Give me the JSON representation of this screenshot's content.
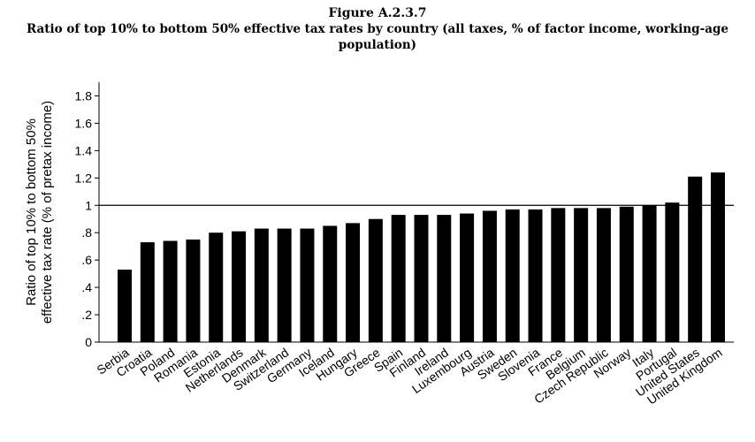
{
  "figure": {
    "label": "Figure A.2.3.7",
    "title_line1": "Ratio of top 10% to bottom 50% effective tax rates by country (all taxes, % of factor income, working-age",
    "title_line2": "population)"
  },
  "chart_data": {
    "type": "bar",
    "ylabel_line1": "Ratio of top 10% to bottom 50%",
    "ylabel_line2": "effective tax rate (% of pretax income)",
    "xlabel": "",
    "ylim": [
      0,
      1.9
    ],
    "yticks": [
      0,
      0.2,
      0.4,
      0.6,
      0.8,
      1,
      1.2,
      1.4,
      1.6,
      1.8
    ],
    "ytick_labels": [
      "0",
      ".2",
      ".4",
      ".6",
      ".8",
      "1",
      "1.2",
      "1.4",
      "1.6",
      "1.8"
    ],
    "reference_line": 1,
    "bar_color": "#000000",
    "categories": [
      "Serbia",
      "Croatia",
      "Poland",
      "Romania",
      "Estonia",
      "Netherlands",
      "Denmark",
      "Switzerland",
      "Germany",
      "Iceland",
      "Hungary",
      "Greece",
      "Spain",
      "Finland",
      "Ireland",
      "Luxembourg",
      "Austria",
      "Sweden",
      "Slovenia",
      "France",
      "Belgium",
      "Czech Republic",
      "Norway",
      "Italy",
      "Portugal",
      "United States",
      "United Kingdom"
    ],
    "values": [
      0.53,
      0.73,
      0.74,
      0.75,
      0.8,
      0.81,
      0.83,
      0.83,
      0.83,
      0.85,
      0.87,
      0.9,
      0.93,
      0.93,
      0.93,
      0.94,
      0.96,
      0.97,
      0.97,
      0.98,
      0.98,
      0.98,
      0.99,
      1.0,
      1.02,
      1.21,
      1.24
    ]
  }
}
